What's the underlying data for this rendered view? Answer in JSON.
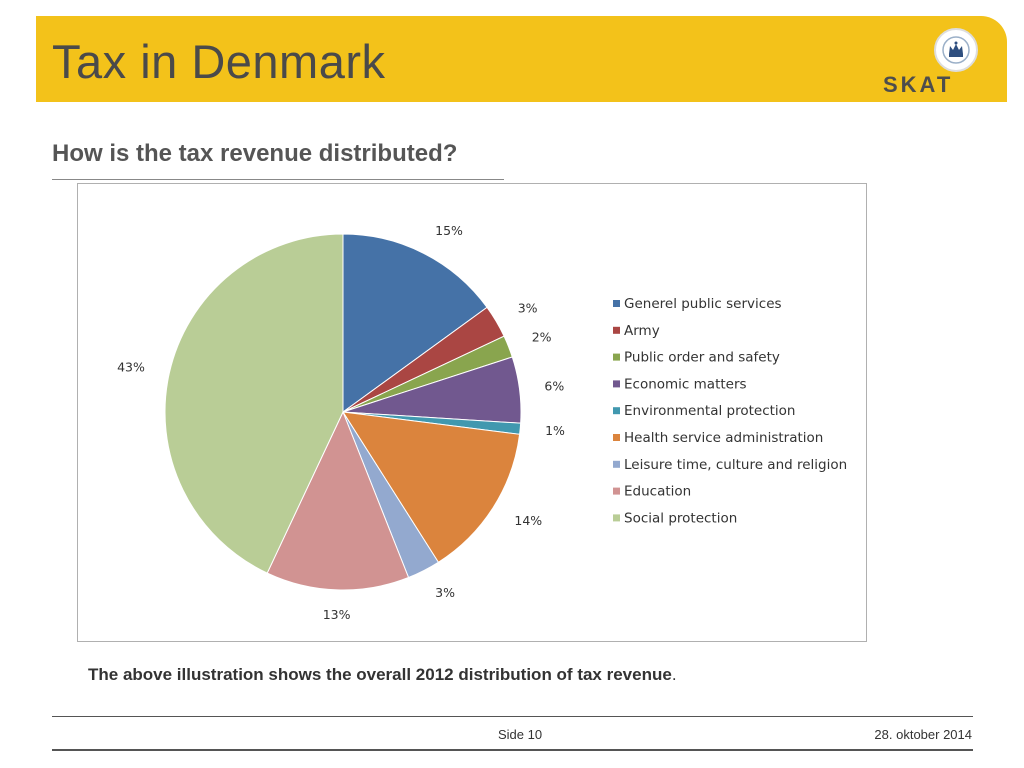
{
  "header": {
    "title": "Tax in Denmark",
    "logo_text": "SKAT",
    "accent_color": "#f3c21a",
    "logo_icon": "crown-seal-icon"
  },
  "subtitle": "How is the tax revenue distributed?",
  "caption": {
    "bold_text": "The above illustration shows the overall 2012 distribution of tax revenue",
    "suffix": "."
  },
  "footer": {
    "page": "Side 10",
    "date": "28. oktober 2014"
  },
  "chart_data": {
    "type": "pie",
    "title": "",
    "legend_position": "right",
    "start_angle": "top",
    "direction": "clockwise",
    "slices": [
      {
        "label": "Generel public services",
        "value": 15,
        "pct_label": "15%",
        "color": "#4572a7"
      },
      {
        "label": "Army",
        "value": 3,
        "pct_label": "3%",
        "color": "#aa4643"
      },
      {
        "label": "Public order and safety",
        "value": 2,
        "pct_label": "2%",
        "color": "#89a54e"
      },
      {
        "label": "Economic matters",
        "value": 6,
        "pct_label": "6%",
        "color": "#71588f"
      },
      {
        "label": "Environmental protection",
        "value": 1,
        "pct_label": "1%",
        "color": "#4198af"
      },
      {
        "label": "Health service administration",
        "value": 14,
        "pct_label": "14%",
        "color": "#db843d"
      },
      {
        "label": "Leisure time, culture and religion",
        "value": 3,
        "pct_label": "3%",
        "color": "#93a9cf"
      },
      {
        "label": "Education",
        "value": 13,
        "pct_label": "13%",
        "color": "#d19392"
      },
      {
        "label": "Social protection",
        "value": 43,
        "pct_label": "43%",
        "color": "#b9cd96"
      }
    ]
  }
}
